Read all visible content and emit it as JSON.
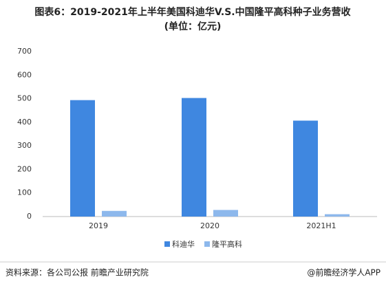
{
  "chart_data": {
    "type": "bar",
    "title": "图表6：2019-2021年上半年美国科迪华V.S.中国隆平高科种子业务营收",
    "subtitle": "(单位：亿元)",
    "categories": [
      "2019",
      "2020",
      "2021H1"
    ],
    "series": [
      {
        "name": "科迪华",
        "color": "#3f87e0",
        "values": [
          494,
          503,
          407
        ]
      },
      {
        "name": "隆平高科",
        "color": "#8db8ec",
        "values": [
          24,
          28,
          10
        ]
      }
    ],
    "ylim": [
      0,
      700
    ],
    "yticks": [
      0,
      100,
      200,
      300,
      400,
      500,
      600,
      700
    ],
    "grid": false,
    "legend": "bottom"
  },
  "footer": {
    "source": "资料来源：各公司公报 前瞻产业研究院",
    "brand": "@前瞻经济学人APP"
  }
}
